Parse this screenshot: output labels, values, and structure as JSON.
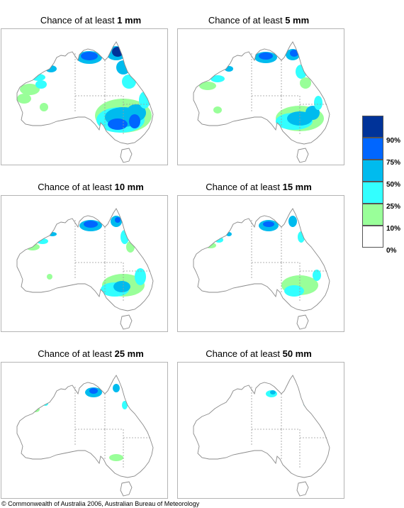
{
  "panels": [
    {
      "prefix": "Chance of at least ",
      "amount": "1 mm",
      "level": 1
    },
    {
      "prefix": "Chance of at least ",
      "amount": "5 mm",
      "level": 2
    },
    {
      "prefix": "Chance of at least ",
      "amount": "10 mm",
      "level": 3
    },
    {
      "prefix": "Chance of at least ",
      "amount": "15 mm",
      "level": 4
    },
    {
      "prefix": "Chance of at least ",
      "amount": "25 mm",
      "level": 5
    },
    {
      "prefix": "Chance of at least ",
      "amount": "50 mm",
      "level": 6
    }
  ],
  "legend": {
    "colors": [
      "#003399",
      "#0066ff",
      "#00bbee",
      "#33ffff",
      "#99ff99",
      "#ffffff"
    ],
    "labels": [
      "90%",
      "75%",
      "50%",
      "25%",
      "10%",
      "0%"
    ]
  },
  "colors": {
    "outline": "#8a8a8a",
    "border_line": "#9a9a9a",
    "frame": "#b4b4b4"
  },
  "copyright": "© Commonwealth of Australia 2006, Australian Bureau of Meteorology"
}
